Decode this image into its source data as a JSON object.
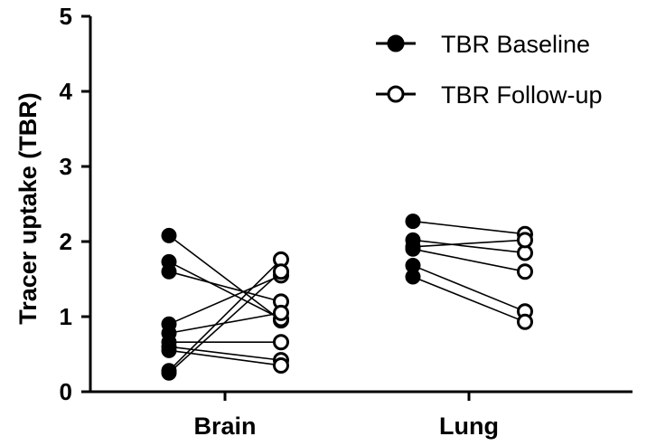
{
  "chart_data": {
    "type": "scatter",
    "categories": [
      "Brain",
      "Lung"
    ],
    "ylabel": "Tracer uptake (TBR)",
    "xlabel": "",
    "ylim": [
      0,
      5
    ],
    "yticks": [
      0,
      1,
      2,
      3,
      4,
      5
    ],
    "legend_position": "top-right",
    "colors": {
      "ink": "#000000",
      "open_fill": "#ffffff"
    },
    "series": [
      {
        "name": "TBR Baseline",
        "marker": "filled-circle"
      },
      {
        "name": "TBR Follow-up",
        "marker": "open-circle"
      }
    ],
    "pairs": {
      "Brain": [
        [
          2.08,
          0.95
        ],
        [
          1.73,
          0.97
        ],
        [
          1.6,
          1.2
        ],
        [
          0.9,
          1.55
        ],
        [
          0.78,
          1.05
        ],
        [
          0.66,
          0.66
        ],
        [
          0.6,
          0.42
        ],
        [
          0.55,
          0.35
        ],
        [
          0.28,
          1.76
        ],
        [
          0.25,
          1.6
        ]
      ],
      "Lung": [
        [
          2.27,
          2.1
        ],
        [
          2.02,
          1.85
        ],
        [
          1.93,
          2.02
        ],
        [
          1.68,
          1.07
        ],
        [
          1.53,
          0.93
        ],
        [
          1.9,
          1.6
        ]
      ]
    }
  }
}
